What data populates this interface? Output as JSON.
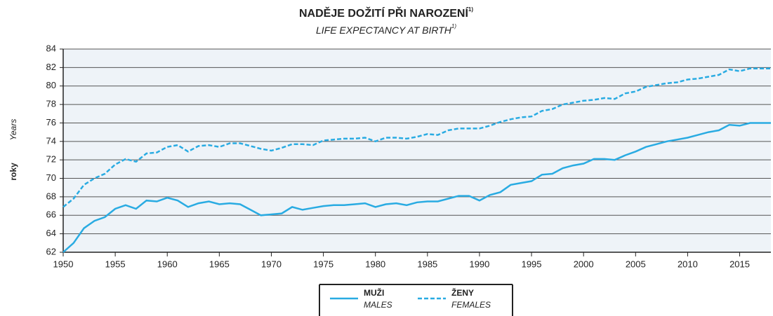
{
  "chart_data": {
    "type": "line",
    "title": "NADĚJE DOŽITÍ PŘI NAROZENÍ",
    "title_note": "1)",
    "subtitle": "LIFE EXPECTANCY AT BIRTH",
    "subtitle_note": "1)",
    "y_label": "roky",
    "y_label_en": "Years",
    "x": [
      1950,
      1951,
      1952,
      1953,
      1954,
      1955,
      1956,
      1957,
      1958,
      1959,
      1960,
      1961,
      1962,
      1963,
      1964,
      1965,
      1966,
      1967,
      1968,
      1969,
      1970,
      1971,
      1972,
      1973,
      1974,
      1975,
      1976,
      1977,
      1978,
      1979,
      1980,
      1981,
      1982,
      1983,
      1984,
      1985,
      1986,
      1987,
      1988,
      1989,
      1990,
      1991,
      1992,
      1993,
      1994,
      1995,
      1996,
      1997,
      1998,
      1999,
      2000,
      2001,
      2002,
      2003,
      2004,
      2005,
      2006,
      2007,
      2008,
      2009,
      2010,
      2011,
      2012,
      2013,
      2014,
      2015,
      2016,
      2017,
      2018
    ],
    "series": [
      {
        "name": "MUŽI",
        "name_en": "MALES",
        "color": "#29abe2",
        "dash": false,
        "values": [
          62.0,
          63.0,
          64.6,
          65.4,
          65.8,
          66.7,
          67.1,
          66.7,
          67.6,
          67.5,
          67.9,
          67.6,
          66.9,
          67.3,
          67.5,
          67.2,
          67.3,
          67.2,
          66.6,
          66.0,
          66.1,
          66.2,
          66.9,
          66.6,
          66.8,
          67.0,
          67.1,
          67.1,
          67.2,
          67.3,
          66.9,
          67.2,
          67.3,
          67.1,
          67.4,
          67.5,
          67.5,
          67.8,
          68.1,
          68.1,
          67.6,
          68.2,
          68.5,
          69.3,
          69.5,
          69.7,
          70.4,
          70.5,
          71.1,
          71.4,
          71.6,
          72.1,
          72.1,
          72.0,
          72.5,
          72.9,
          73.4,
          73.7,
          74.0,
          74.2,
          74.4,
          74.7,
          75.0,
          75.2,
          75.8,
          75.7,
          76.0,
          76.0,
          76.0
        ]
      },
      {
        "name": "ŽENY",
        "name_en": "FEMALES",
        "color": "#29abe2",
        "dash": true,
        "values": [
          66.9,
          67.8,
          69.3,
          70.0,
          70.5,
          71.5,
          72.1,
          71.8,
          72.7,
          72.8,
          73.4,
          73.6,
          72.9,
          73.5,
          73.6,
          73.4,
          73.8,
          73.8,
          73.5,
          73.2,
          73.0,
          73.3,
          73.7,
          73.7,
          73.6,
          74.1,
          74.2,
          74.3,
          74.3,
          74.4,
          74.0,
          74.4,
          74.4,
          74.3,
          74.5,
          74.8,
          74.7,
          75.2,
          75.4,
          75.4,
          75.4,
          75.7,
          76.1,
          76.4,
          76.6,
          76.7,
          77.3,
          77.5,
          78.0,
          78.2,
          78.4,
          78.5,
          78.7,
          78.6,
          79.2,
          79.4,
          79.9,
          80.1,
          80.3,
          80.4,
          80.7,
          80.8,
          81.0,
          81.2,
          81.8,
          81.6,
          81.9,
          81.9,
          81.9
        ]
      }
    ],
    "xlim": [
      1950,
      2018
    ],
    "xticks": [
      1950,
      1955,
      1960,
      1965,
      1970,
      1975,
      1980,
      1985,
      1990,
      1995,
      2000,
      2005,
      2010,
      2015
    ],
    "ylim": [
      62,
      84
    ],
    "yticks": [
      62,
      64,
      66,
      68,
      70,
      72,
      74,
      76,
      78,
      80,
      82,
      84
    ],
    "grid": true
  }
}
